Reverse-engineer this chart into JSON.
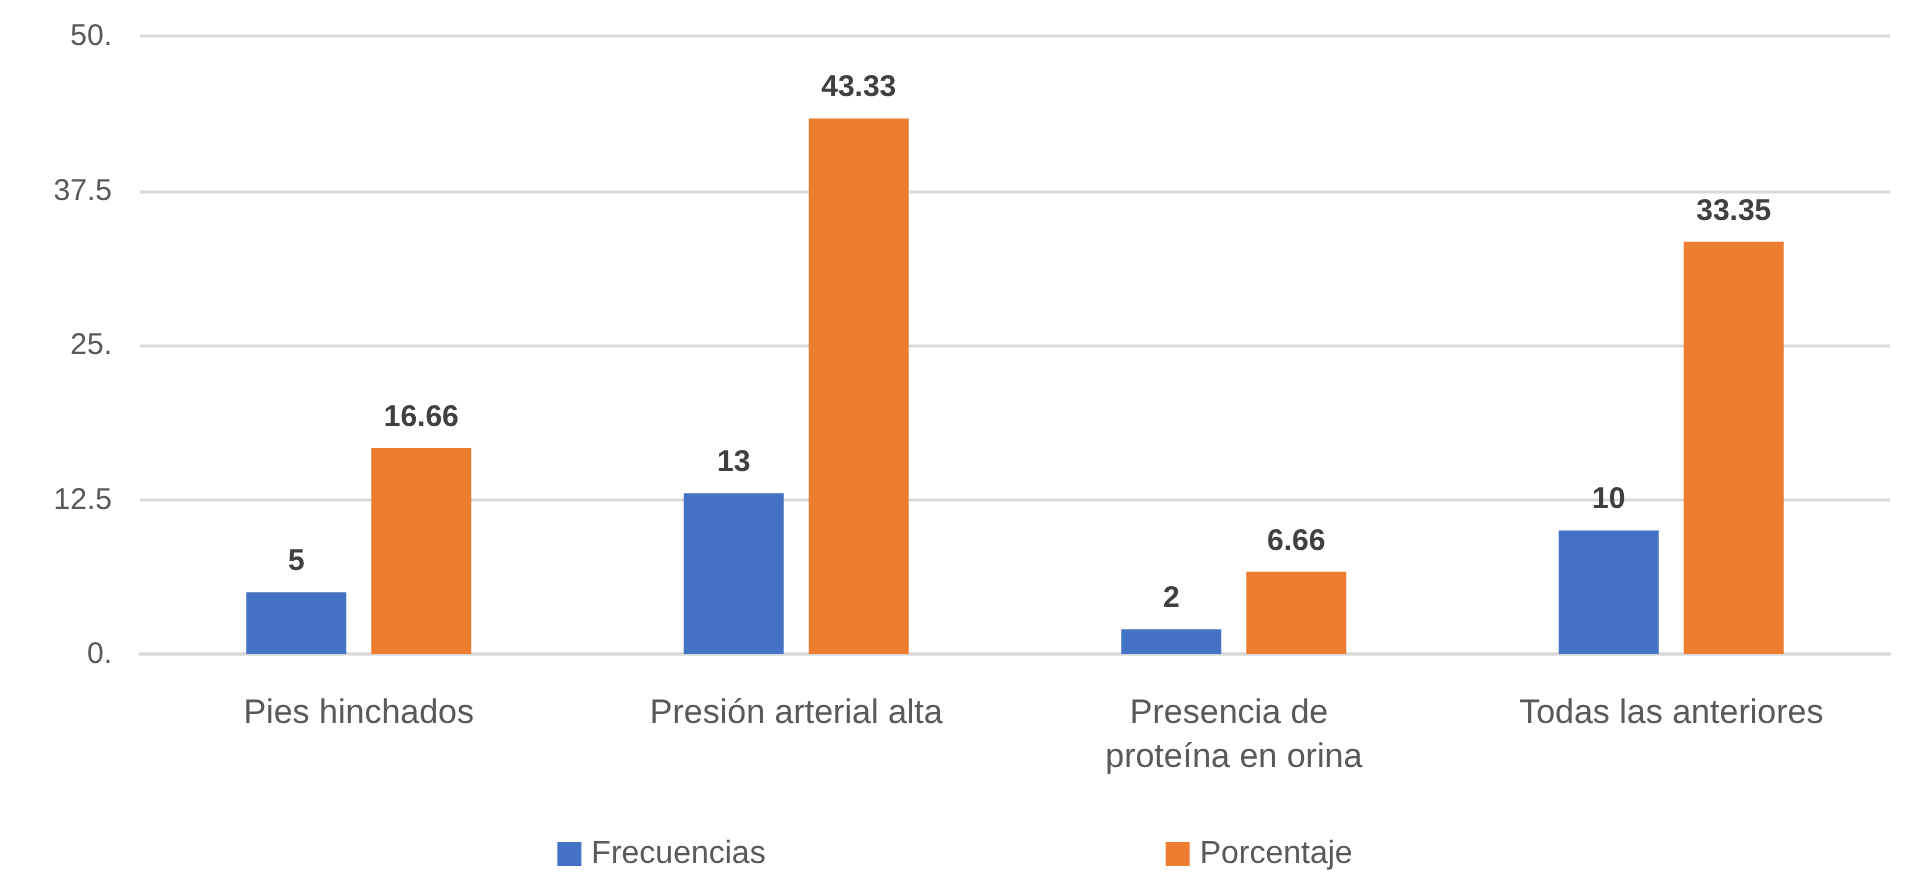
{
  "chart_data": {
    "type": "bar",
    "categories": [
      "Pies hinchados",
      "Presión arterial alta",
      "Presencia de proteína en orina",
      "Todas las anteriores"
    ],
    "series": [
      {
        "name": "Frecuencias",
        "color": "#4472c4",
        "values": [
          5,
          13,
          2,
          10
        ]
      },
      {
        "name": "Porcentaje",
        "color": "#ed7d31",
        "values": [
          16.66,
          43.33,
          6.66,
          33.35
        ]
      }
    ],
    "ylim": [
      0,
      50
    ],
    "yticks": [
      {
        "value": 0,
        "label": "0."
      },
      12.5,
      {
        "value": 25,
        "label": "25."
      },
      37.5,
      {
        "value": 50,
        "label": "50."
      }
    ],
    "grid": "y",
    "legend": "bottom",
    "data_labels": true
  }
}
